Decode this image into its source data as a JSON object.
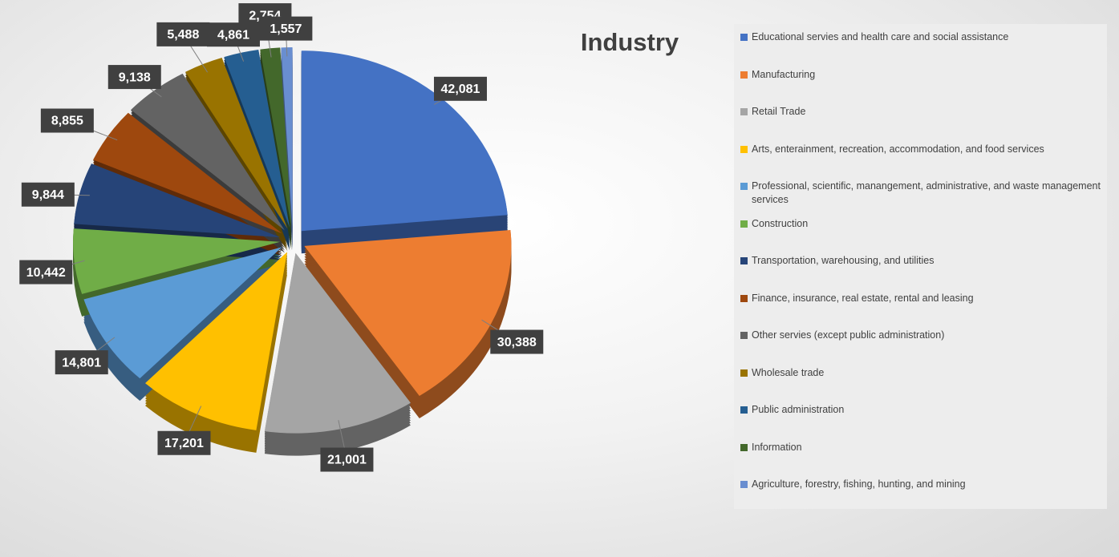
{
  "chart_data": {
    "type": "pie",
    "title": "Industry",
    "categories": [
      "Educational servies and health care and social assistance",
      "Manufacturing",
      "Retail Trade",
      "Arts, enterainment, recreation, accommodation, and food services",
      "Professional, scientific, manangement, administrative, and waste management services",
      "Construction",
      "Transportation, warehousing, and utilities",
      "Finance, insurance, real estate, rental and leasing",
      "Other servies (except public administration)",
      "Wholesale trade",
      "Public administration",
      "Information",
      "Agriculture, forestry, fishing, hunting, and mining"
    ],
    "values": [
      42081,
      30388,
      21001,
      17201,
      14801,
      10442,
      9844,
      8855,
      9138,
      5488,
      4861,
      2754,
      1557
    ],
    "value_labels": [
      "42,081",
      "30,388",
      "21,001",
      "17,201",
      "14,801",
      "10,442",
      "9,844",
      "8,855",
      "9,138",
      "5,488",
      "4,861",
      "2,754",
      "1,557"
    ],
    "colors": [
      "#4472c4",
      "#ed7d31",
      "#a5a5a5",
      "#ffc000",
      "#5b9bd5",
      "#70ad47",
      "#264478",
      "#9e480e",
      "#636363",
      "#997300",
      "#255e91",
      "#43682b",
      "#698ed0"
    ],
    "legend": "right"
  }
}
